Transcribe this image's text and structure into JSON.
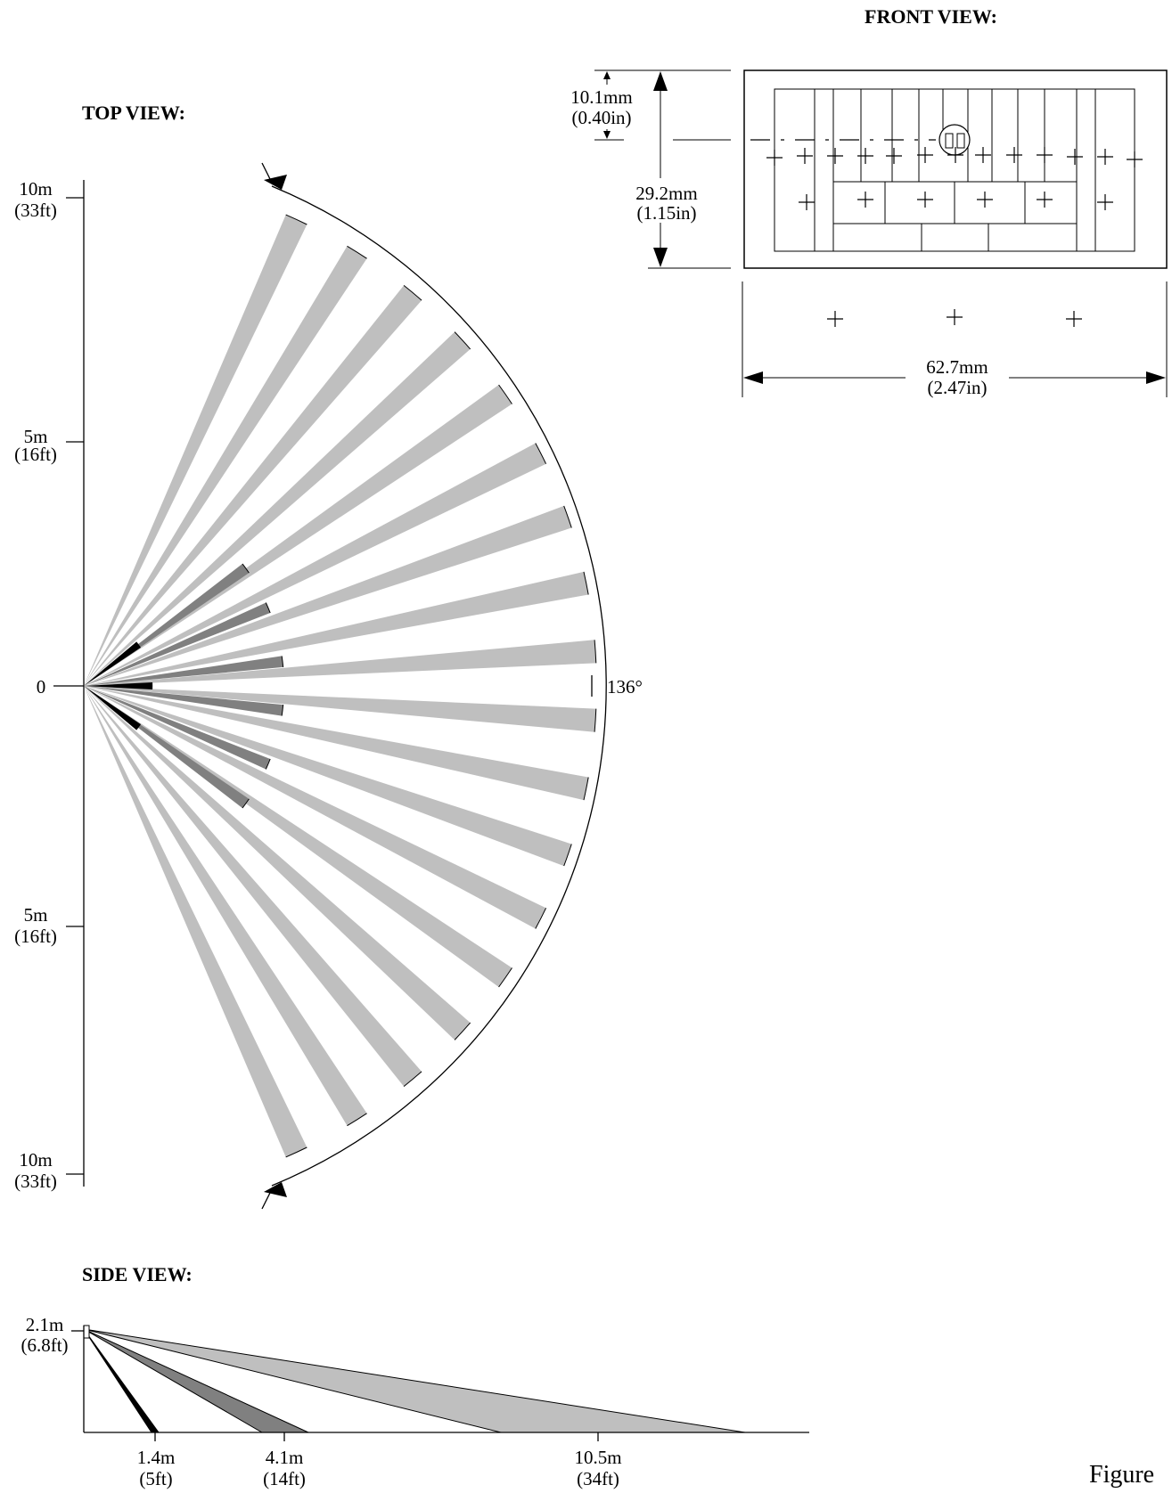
{
  "headings": {
    "top": "TOP VIEW:",
    "front": "FRONT VIEW:",
    "side": "SIDE VIEW:"
  },
  "caption": "Figure",
  "top_view": {
    "axis_ticks": [
      {
        "m": "10m",
        "ft": "(33ft)"
      },
      {
        "m": "5m",
        "ft": "(16ft)"
      },
      {
        "m": "0",
        "ft": ""
      },
      {
        "m": "5m",
        "ft": "(16ft)"
      },
      {
        "m": "10m",
        "ft": "(33ft)"
      }
    ],
    "angle_label": "136°",
    "long_zone_count": 18,
    "mid_zone_count": 6,
    "near_zone_count": 3,
    "long_range_m": 10.5,
    "mid_range_m": 4.1,
    "near_range_m": 1.4,
    "total_angle_deg": 136
  },
  "front_view": {
    "height_top": {
      "mm": "10.1mm",
      "in": "(0.40in)"
    },
    "height_total": {
      "mm": "29.2mm",
      "in": "(1.15in)"
    },
    "width": {
      "mm": "62.7mm",
      "in": "(2.47in)"
    }
  },
  "side_view": {
    "mount_height": {
      "m": "2.1m",
      "ft": "(6.8ft)"
    },
    "distances": [
      {
        "m": "1.4m",
        "ft": "(5ft)"
      },
      {
        "m": "4.1m",
        "ft": "(14ft)"
      },
      {
        "m": "10.5m",
        "ft": "(34ft)"
      }
    ]
  },
  "colors": {
    "long_zone": "#bfbfbf",
    "mid_zone": "#808080",
    "near_zone": "#000000",
    "line": "#000000"
  }
}
